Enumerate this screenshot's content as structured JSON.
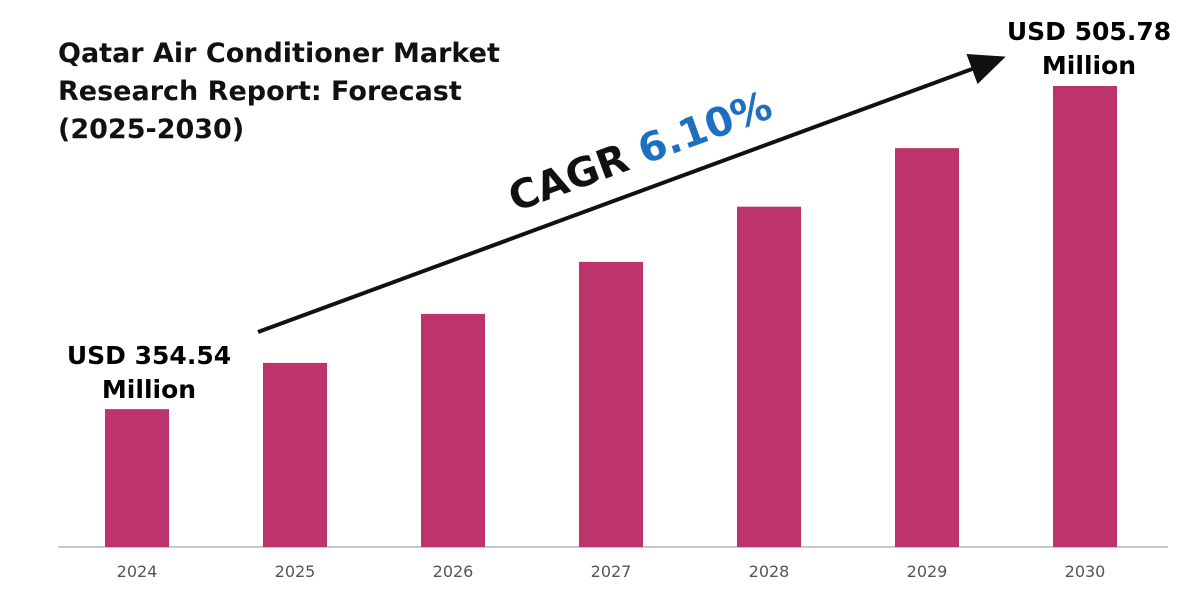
{
  "title_lines": [
    "Qatar Air Conditioner Market",
    "Research Report: Forecast",
    "(2025-2030)"
  ],
  "start_callout": [
    "USD 354.54",
    "Million"
  ],
  "end_callout": [
    "USD 505.78",
    "Million"
  ],
  "cagr": {
    "prefix": "CAGR ",
    "value": "6.10%"
  },
  "colors": {
    "bar": "#bc346b",
    "cagr_value": "#1f6fc1",
    "arrow": "#111111",
    "axis": "#c8c8c8"
  },
  "chart_data": {
    "type": "bar",
    "title": "Qatar Air Conditioner Market Research Report: Forecast (2025-2030)",
    "categories": [
      "2024",
      "2025",
      "2026",
      "2027",
      "2028",
      "2029",
      "2030"
    ],
    "values": [
      354.54,
      376.17,
      399.11,
      423.46,
      449.29,
      476.7,
      505.78
    ],
    "unit": "USD Million",
    "data_labels": {
      "2024": "USD 354.54 Million",
      "2030": "USD 505.78 Million"
    },
    "ylim": [
      290,
      520
    ],
    "grid": false,
    "legend": "none"
  }
}
